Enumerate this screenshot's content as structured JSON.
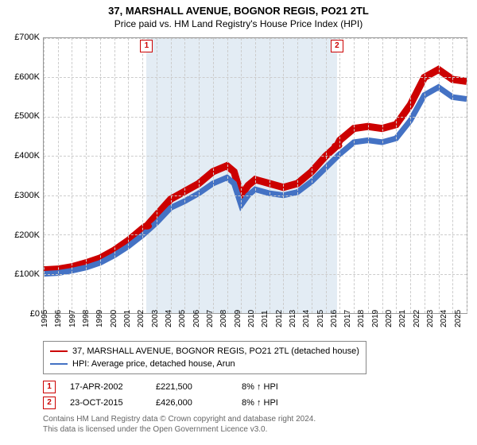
{
  "title": "37, MARSHALL AVENUE, BOGNOR REGIS, PO21 2TL",
  "subtitle": "Price paid vs. HM Land Registry's House Price Index (HPI)",
  "chart": {
    "type": "line",
    "background_color": "#ffffff",
    "grid_color": "#cccccc",
    "axis_color": "#999999",
    "ylim": [
      0,
      700000
    ],
    "ytick_step": 100000,
    "yticks": [
      "£0",
      "£100K",
      "£200K",
      "£300K",
      "£400K",
      "£500K",
      "£600K",
      "£700K"
    ],
    "xlim": [
      1995,
      2025
    ],
    "xticks": [
      1995,
      1996,
      1997,
      1998,
      1999,
      2000,
      2001,
      2002,
      2003,
      2004,
      2005,
      2006,
      2007,
      2008,
      2009,
      2010,
      2011,
      2012,
      2013,
      2014,
      2015,
      2016,
      2017,
      2018,
      2019,
      2020,
      2021,
      2022,
      2023,
      2024,
      2025
    ],
    "shaded_region": {
      "start": 2002.3,
      "end": 2015.8,
      "color": "rgba(70,130,180,0.15)"
    },
    "callouts": [
      {
        "n": "1",
        "x": 2002.3
      },
      {
        "n": "2",
        "x": 2015.8
      }
    ],
    "series": [
      {
        "name": "37, MARSHALL AVENUE, BOGNOR REGIS, PO21 2TL (detached house)",
        "color": "#cc0000",
        "line_width": 1.5,
        "data": [
          [
            1995,
            110000
          ],
          [
            1996,
            112000
          ],
          [
            1997,
            118000
          ],
          [
            1998,
            128000
          ],
          [
            1999,
            140000
          ],
          [
            2000,
            160000
          ],
          [
            2001,
            185000
          ],
          [
            2002,
            215000
          ],
          [
            2002.3,
            221500
          ],
          [
            2003,
            250000
          ],
          [
            2004,
            290000
          ],
          [
            2005,
            310000
          ],
          [
            2006,
            330000
          ],
          [
            2007,
            360000
          ],
          [
            2008,
            375000
          ],
          [
            2008.5,
            360000
          ],
          [
            2009,
            300000
          ],
          [
            2009.5,
            325000
          ],
          [
            2010,
            340000
          ],
          [
            2011,
            330000
          ],
          [
            2012,
            320000
          ],
          [
            2013,
            330000
          ],
          [
            2014,
            360000
          ],
          [
            2015,
            400000
          ],
          [
            2015.8,
            426000
          ],
          [
            2016,
            440000
          ],
          [
            2017,
            470000
          ],
          [
            2018,
            475000
          ],
          [
            2019,
            470000
          ],
          [
            2020,
            480000
          ],
          [
            2021,
            530000
          ],
          [
            2022,
            600000
          ],
          [
            2023,
            620000
          ],
          [
            2024,
            595000
          ],
          [
            2025,
            590000
          ]
        ]
      },
      {
        "name": "HPI: Average price, detached house, Arun",
        "color": "#4472c4",
        "line_width": 1.2,
        "data": [
          [
            1995,
            100000
          ],
          [
            1996,
            102000
          ],
          [
            1997,
            108000
          ],
          [
            1998,
            116000
          ],
          [
            1999,
            128000
          ],
          [
            2000,
            147000
          ],
          [
            2001,
            170000
          ],
          [
            2002,
            198000
          ],
          [
            2003,
            230000
          ],
          [
            2004,
            268000
          ],
          [
            2005,
            285000
          ],
          [
            2006,
            305000
          ],
          [
            2007,
            330000
          ],
          [
            2008,
            345000
          ],
          [
            2008.5,
            330000
          ],
          [
            2009,
            275000
          ],
          [
            2009.5,
            300000
          ],
          [
            2010,
            315000
          ],
          [
            2011,
            305000
          ],
          [
            2012,
            300000
          ],
          [
            2013,
            308000
          ],
          [
            2014,
            335000
          ],
          [
            2015,
            370000
          ],
          [
            2016,
            405000
          ],
          [
            2017,
            435000
          ],
          [
            2018,
            440000
          ],
          [
            2019,
            435000
          ],
          [
            2020,
            445000
          ],
          [
            2021,
            490000
          ],
          [
            2022,
            555000
          ],
          [
            2023,
            575000
          ],
          [
            2024,
            550000
          ],
          [
            2025,
            545000
          ]
        ]
      }
    ],
    "points": [
      {
        "x": 2002.3,
        "y": 221500,
        "color": "#cc0000",
        "r": 4
      },
      {
        "x": 2015.8,
        "y": 426000,
        "color": "#cc0000",
        "r": 4
      }
    ]
  },
  "legend": {
    "items": [
      {
        "color": "#cc0000",
        "label": "37, MARSHALL AVENUE, BOGNOR REGIS, PO21 2TL (detached house)"
      },
      {
        "color": "#4472c4",
        "label": "HPI: Average price, detached house, Arun"
      }
    ]
  },
  "events": [
    {
      "n": "1",
      "date": "17-APR-2002",
      "price": "£221,500",
      "delta": "8% ↑ HPI"
    },
    {
      "n": "2",
      "date": "23-OCT-2015",
      "price": "£426,000",
      "delta": "8% ↑ HPI"
    }
  ],
  "license_l1": "Contains HM Land Registry data © Crown copyright and database right 2024.",
  "license_l2": "This data is licensed under the Open Government Licence v3.0."
}
